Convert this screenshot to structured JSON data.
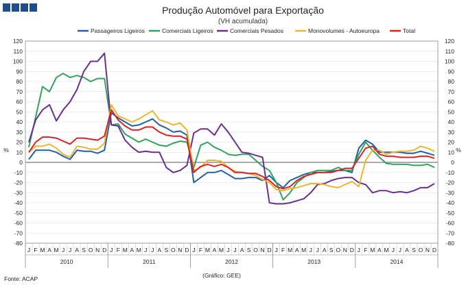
{
  "chart_data": {
    "type": "line",
    "title": "Produção Automóvel para Exportação",
    "subtitle": "(VH acumulada)",
    "ylabel_left": "%",
    "ylabel_right": "%",
    "ylim": [
      -80,
      120
    ],
    "ytick_step": 10,
    "months": [
      "J",
      "F",
      "M",
      "A",
      "M",
      "J",
      "J",
      "A",
      "S",
      "O",
      "N",
      "D"
    ],
    "years": [
      "2010",
      "2011",
      "2012",
      "2013",
      "2014"
    ],
    "source": "Fonte: ACAP",
    "credit": "(Gráfico: GEE)",
    "logo_color": "#1f4e8c",
    "series": [
      {
        "name": "Passageiros Ligeiros",
        "color": "#1f5fa8",
        "values": [
          3,
          12,
          12,
          12,
          10,
          6,
          3,
          12,
          11,
          11,
          9,
          12,
          49,
          44,
          40,
          36,
          37,
          40,
          43,
          37,
          34,
          30,
          31,
          27,
          -20,
          -15,
          -10,
          -10,
          -8,
          -12,
          -16,
          -16,
          -15,
          -15,
          -18,
          -13,
          -20,
          -25,
          -18,
          -15,
          -12,
          -10,
          -10,
          -10,
          -9,
          -8,
          -8,
          -10,
          14,
          22,
          18,
          10,
          10,
          10,
          10,
          9,
          9,
          11,
          9,
          7
        ]
      },
      {
        "name": "Comerciais Ligeiros",
        "color": "#2ca55a",
        "values": [
          15,
          45,
          75,
          70,
          84,
          88,
          84,
          86,
          84,
          80,
          83,
          83,
          37,
          38,
          28,
          24,
          20,
          23,
          20,
          17,
          16,
          19,
          21,
          20,
          -5,
          17,
          20,
          15,
          12,
          8,
          7,
          8,
          8,
          2,
          -4,
          -8,
          -20,
          -37,
          -30,
          -20,
          -15,
          -10,
          -8,
          -8,
          -8,
          -5,
          -8,
          -8,
          8,
          20,
          12,
          5,
          -1,
          -2,
          -2,
          -2,
          -3,
          -3,
          -2,
          -5
        ]
      },
      {
        "name": "Comerciais Pesados",
        "color": "#6a2c91",
        "values": [
          20,
          42,
          52,
          57,
          41,
          52,
          60,
          72,
          90,
          100,
          100,
          108,
          37,
          36,
          22,
          15,
          10,
          11,
          10,
          10,
          -5,
          -10,
          -8,
          -3,
          29,
          33,
          33,
          27,
          38,
          30,
          20,
          10,
          9,
          7,
          5,
          -40,
          -41,
          -41,
          -40,
          -38,
          -36,
          -30,
          -22,
          -21,
          -18,
          -16,
          -15,
          -15,
          -20,
          -22,
          -30,
          -28,
          -28,
          -30,
          -29,
          -30,
          -28,
          -25,
          -25,
          -21
        ]
      },
      {
        "name": "Monovolumes - Autoeuropa",
        "color": "#f0b429",
        "values": [
          10,
          16,
          16,
          18,
          14,
          8,
          5,
          16,
          15,
          13,
          13,
          19,
          57,
          46,
          43,
          40,
          43,
          47,
          51,
          42,
          40,
          37,
          39,
          32,
          -8,
          -5,
          2,
          2,
          1,
          -5,
          -9,
          -10,
          -11,
          -13,
          -17,
          -20,
          -27,
          -28,
          -26,
          -25,
          -23,
          -21,
          -21,
          -22,
          -24,
          -25,
          -22,
          -19,
          -24,
          2,
          12,
          12,
          8,
          10,
          11,
          11,
          12,
          16,
          14,
          11
        ]
      },
      {
        "name": "Total",
        "color": "#e02020",
        "values": [
          10,
          20,
          25,
          25,
          24,
          21,
          18,
          24,
          24,
          23,
          22,
          26,
          52,
          42,
          36,
          32,
          32,
          35,
          35,
          30,
          27,
          26,
          26,
          23,
          -10,
          -4,
          -2,
          -4,
          -2,
          -5,
          -10,
          -10,
          -11,
          -11,
          -14,
          -18,
          -24,
          -26,
          -24,
          -18,
          -14,
          -12,
          -10,
          -10,
          -10,
          -8,
          -6,
          -6,
          4,
          14,
          16,
          8,
          6,
          6,
          5,
          5,
          5,
          6,
          6,
          4
        ]
      }
    ]
  }
}
